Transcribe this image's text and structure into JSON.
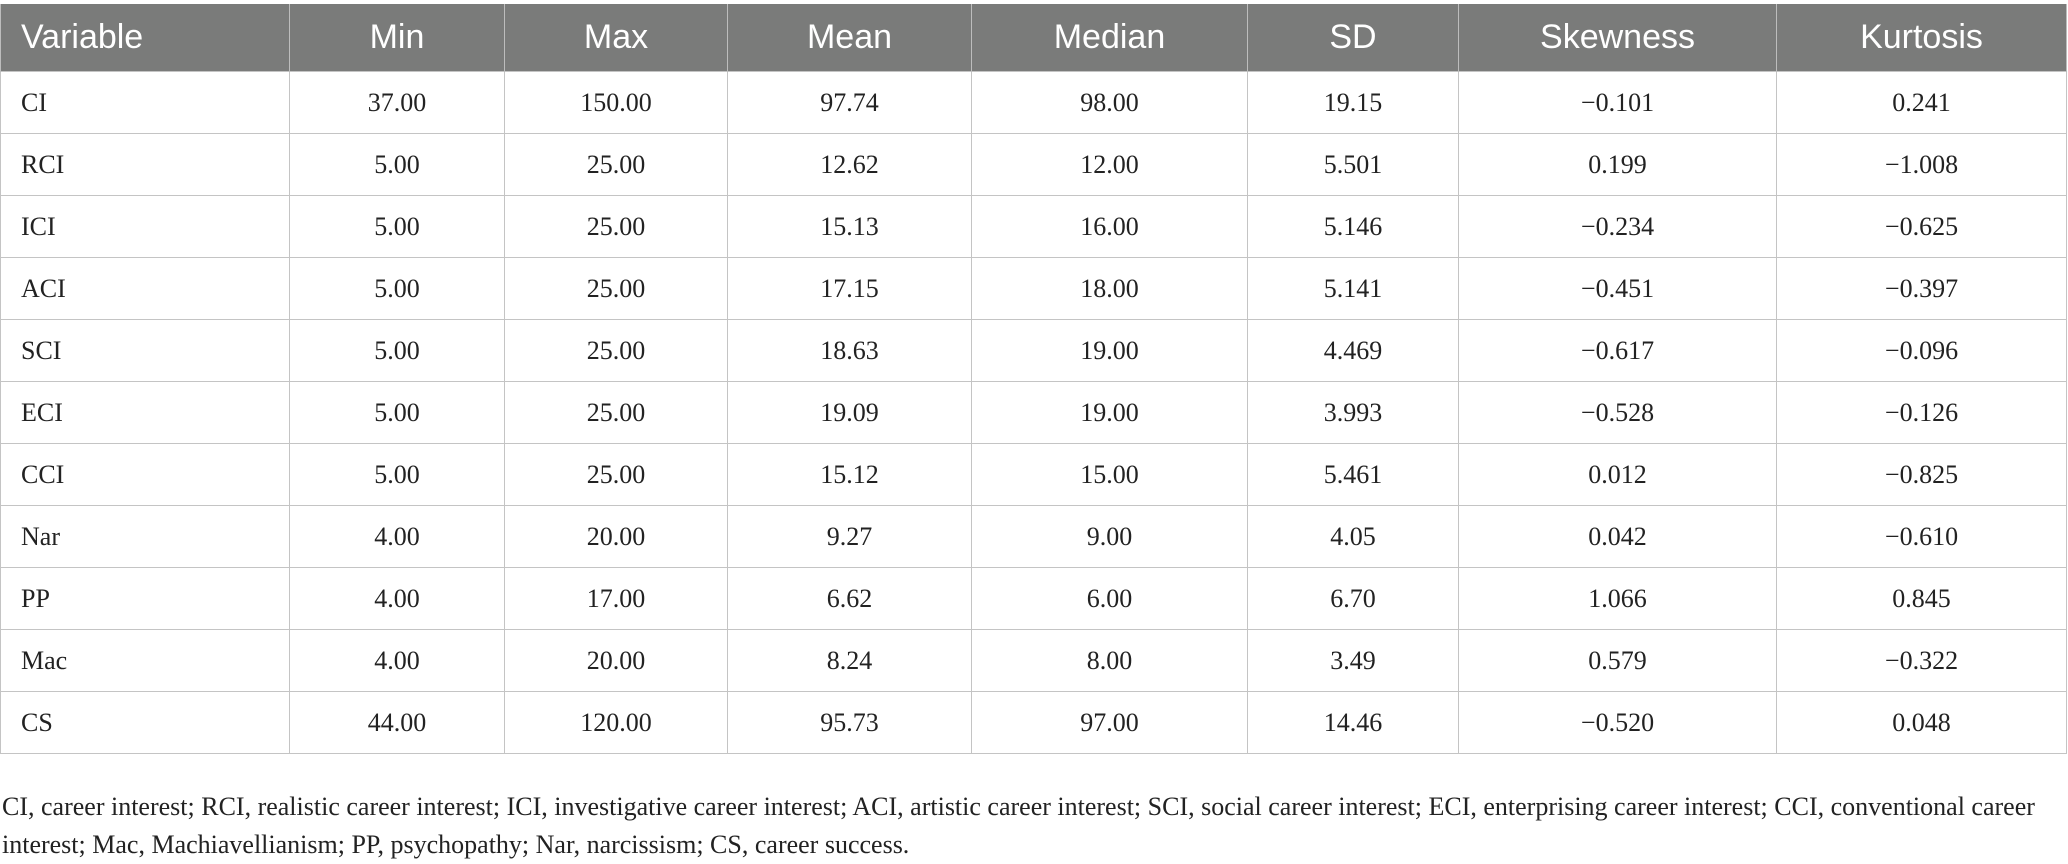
{
  "table": {
    "headers": [
      "Variable",
      "Min",
      "Max",
      "Mean",
      "Median",
      "SD",
      "Skewness",
      "Kurtosis"
    ],
    "rows": [
      [
        "CI",
        "37.00",
        "150.00",
        "97.74",
        "98.00",
        "19.15",
        "−0.101",
        "0.241"
      ],
      [
        "RCI",
        "5.00",
        "25.00",
        "12.62",
        "12.00",
        "5.501",
        "0.199",
        "−1.008"
      ],
      [
        "ICI",
        "5.00",
        "25.00",
        "15.13",
        "16.00",
        "5.146",
        "−0.234",
        "−0.625"
      ],
      [
        "ACI",
        "5.00",
        "25.00",
        "17.15",
        "18.00",
        "5.141",
        "−0.451",
        "−0.397"
      ],
      [
        "SCI",
        "5.00",
        "25.00",
        "18.63",
        "19.00",
        "4.469",
        "−0.617",
        "−0.096"
      ],
      [
        "ECI",
        "5.00",
        "25.00",
        "19.09",
        "19.00",
        "3.993",
        "−0.528",
        "−0.126"
      ],
      [
        "CCI",
        "5.00",
        "25.00",
        "15.12",
        "15.00",
        "5.461",
        "0.012",
        "−0.825"
      ],
      [
        "Nar",
        "4.00",
        "20.00",
        "9.27",
        "9.00",
        "4.05",
        "0.042",
        "−0.610"
      ],
      [
        "PP",
        "4.00",
        "17.00",
        "6.62",
        "6.00",
        "6.70",
        "1.066",
        "0.845"
      ],
      [
        "Mac",
        "4.00",
        "20.00",
        "8.24",
        "8.00",
        "3.49",
        "0.579",
        "−0.322"
      ],
      [
        "CS",
        "44.00",
        "120.00",
        "95.73",
        "97.00",
        "14.46",
        "−0.520",
        "0.048"
      ]
    ]
  },
  "footnote": "CI, career interest; RCI, realistic career interest; ICI, investigative career interest; ACI, artistic career interest; SCI, social career interest; ECI, enterprising career interest; CCI, conventional career interest; Mac, Machiavellianism; PP, psychopathy; Nar, narcissism; CS, career success.",
  "colors": {
    "header_background": "#7a7b7a",
    "header_text": "#ffffff",
    "grid_lines": "#c4c4c4"
  }
}
